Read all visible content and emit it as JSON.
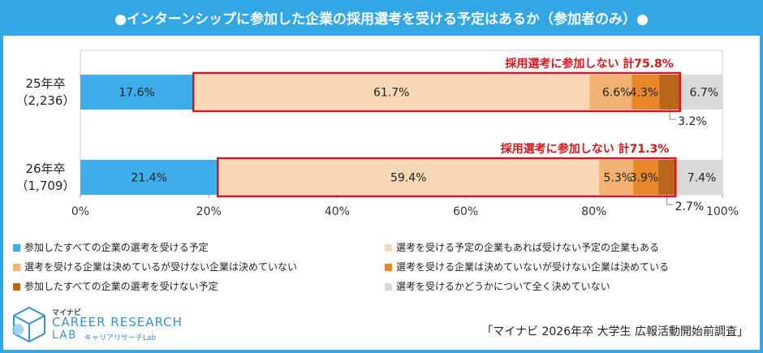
{
  "title": "●インターンシップに参加した企業の採用選考を受ける予定はあるか（参加者のみ）●",
  "chart_data": {
    "type": "bar",
    "orientation": "horizontal-stacked-100",
    "xlim": [
      0,
      100
    ],
    "x_ticks": [
      "0%",
      "20%",
      "40%",
      "60%",
      "80%",
      "100%"
    ],
    "categories": [
      {
        "label": "25年卒",
        "sub": "（2,236）"
      },
      {
        "label": "26年卒",
        "sub": "（1,709）"
      }
    ],
    "series": [
      {
        "name": "参加したすべての企業の選考を受ける予定",
        "color": "#3daee9",
        "values": [
          17.6,
          21.4
        ],
        "labels": [
          "17.6%",
          "21.4%"
        ]
      },
      {
        "name": "選考を受ける予定の企業もあれば受けない予定の企業もある",
        "color": "#f8d7b5",
        "values": [
          61.7,
          59.4
        ],
        "labels": [
          "61.7%",
          "59.4%"
        ]
      },
      {
        "name": "選考を受ける企業は決めているが受けない企業は決めていない",
        "color": "#f2b273",
        "values": [
          6.6,
          5.3
        ],
        "labels": [
          "6.6%",
          "5.3%"
        ]
      },
      {
        "name": "選考を受ける企業は決めていないが受けない企業は決めている",
        "color": "#e8862a",
        "values": [
          4.3,
          3.9
        ],
        "labels": [
          "4.3%",
          "3.9%"
        ]
      },
      {
        "name": "参加したすべての企業の選考を受けない予定",
        "color": "#b9651c",
        "values": [
          3.2,
          2.7
        ],
        "labels": [
          "3.2%",
          "2.7%"
        ]
      },
      {
        "name": "選考を受けるかどうかについて全く決めていない",
        "color": "#d9d9d9",
        "values": [
          6.7,
          7.4
        ],
        "labels": [
          "6.7%",
          "7.4%"
        ]
      }
    ],
    "annotations": [
      {
        "text": "採用選考に参加しない 計75.8%",
        "row": 0
      },
      {
        "text": "採用選考に参加しない 計71.3%",
        "row": 1
      }
    ],
    "highlight_color": "#d9151b"
  },
  "logo": {
    "small": "マイナビ",
    "main": "CAREER RESEARCH",
    "lab": "LAB",
    "sub": "キャリアリサーチLab"
  },
  "source": "「マイナビ 2026年卒 大学生 広報活動開始前調査」"
}
